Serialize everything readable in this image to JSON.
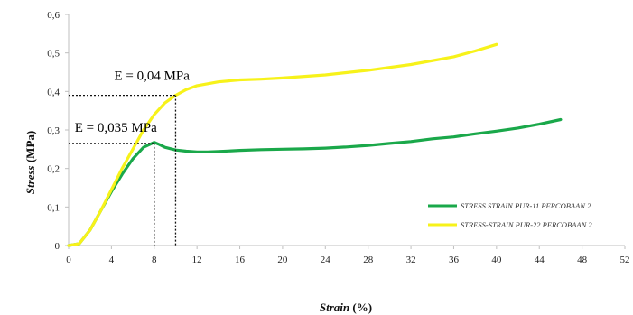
{
  "chart_data": {
    "type": "line",
    "xlabel_italic": "Strain",
    "xlabel_suffix": " (%)",
    "ylabel_italic": "Stress",
    "ylabel_suffix": " (MPa)",
    "xlim": [
      0,
      52
    ],
    "ylim": [
      0,
      0.6
    ],
    "x_ticks": [
      "0",
      "4",
      "8",
      "12",
      "16",
      "20",
      "24",
      "28",
      "32",
      "36",
      "40",
      "44",
      "48",
      "52"
    ],
    "y_ticks": [
      "0",
      "0,1",
      "0,2",
      "0,3",
      "0,4",
      "0,5",
      "0,6"
    ],
    "grid": false,
    "legend_position": "right",
    "series": [
      {
        "name": "STRESS STRAIN PUR-11 PERCOBAAN 2",
        "color": "#1aa84a",
        "points": [
          [
            0,
            0
          ],
          [
            1,
            0.005
          ],
          [
            2,
            0.04
          ],
          [
            3,
            0.09
          ],
          [
            4,
            0.14
          ],
          [
            5,
            0.185
          ],
          [
            6,
            0.225
          ],
          [
            7,
            0.255
          ],
          [
            8,
            0.268
          ],
          [
            8.5,
            0.262
          ],
          [
            9,
            0.255
          ],
          [
            10,
            0.248
          ],
          [
            11,
            0.245
          ],
          [
            12,
            0.243
          ],
          [
            13,
            0.243
          ],
          [
            14,
            0.244
          ],
          [
            16,
            0.247
          ],
          [
            18,
            0.249
          ],
          [
            20,
            0.25
          ],
          [
            22,
            0.251
          ],
          [
            24,
            0.253
          ],
          [
            26,
            0.256
          ],
          [
            28,
            0.26
          ],
          [
            30,
            0.265
          ],
          [
            32,
            0.27
          ],
          [
            34,
            0.277
          ],
          [
            36,
            0.282
          ],
          [
            38,
            0.29
          ],
          [
            40,
            0.297
          ],
          [
            42,
            0.305
          ],
          [
            44,
            0.315
          ],
          [
            46,
            0.327
          ]
        ]
      },
      {
        "name": "STRESS-STRAIN PUR-22 PERCOBAAN 2",
        "color": "#f7f21a",
        "points": [
          [
            0,
            0
          ],
          [
            1,
            0.005
          ],
          [
            2,
            0.04
          ],
          [
            3,
            0.09
          ],
          [
            4,
            0.145
          ],
          [
            5,
            0.2
          ],
          [
            6,
            0.25
          ],
          [
            7,
            0.3
          ],
          [
            8,
            0.34
          ],
          [
            9,
            0.37
          ],
          [
            10,
            0.39
          ],
          [
            11,
            0.405
          ],
          [
            12,
            0.415
          ],
          [
            14,
            0.425
          ],
          [
            16,
            0.43
          ],
          [
            18,
            0.432
          ],
          [
            20,
            0.435
          ],
          [
            24,
            0.443
          ],
          [
            28,
            0.455
          ],
          [
            32,
            0.47
          ],
          [
            36,
            0.49
          ],
          [
            38,
            0.505
          ],
          [
            40,
            0.522
          ]
        ]
      }
    ],
    "annotations": [
      {
        "text": "E = 0,04 MPa",
        "x": 10,
        "y": 0.39
      },
      {
        "text": "E = 0,035 MPa",
        "x": 8,
        "y": 0.265
      }
    ]
  }
}
